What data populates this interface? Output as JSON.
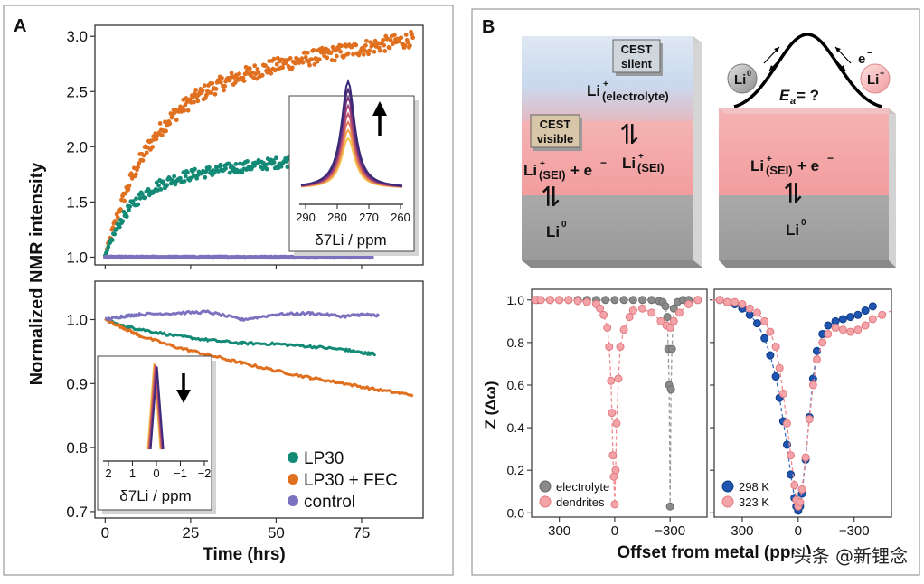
{
  "panels": {
    "a": "A",
    "b": "B"
  },
  "colors": {
    "lp30": "#128a76",
    "fec": "#e0701f",
    "control": "#7a72bf",
    "grey": "#8a8a8a",
    "pink": "#f4a4a8",
    "blue": "#1f55b0",
    "inset_gold": "#f2c14e",
    "inset_purple": "#3d2c7a"
  },
  "watermark": "头条 @新锂念",
  "chart_data": [
    {
      "id": "A-top",
      "type": "scatter",
      "panel": "A",
      "ylabel": "Normalized NMR intensity",
      "xlabel": "Time (hrs)",
      "xlim": [
        -3,
        93
      ],
      "ylim": [
        0.93,
        3.1
      ],
      "xticks": [
        0,
        25,
        50,
        75
      ],
      "yticks": [
        1.0,
        1.5,
        2.0,
        2.5,
        3.0
      ],
      "ytick_labels": [
        "1.0",
        "1.5",
        "2.0",
        "2.5",
        "3.0"
      ],
      "series": [
        {
          "name": "LP30 + FEC",
          "color_key": "fec",
          "model": {
            "kind": "saturating",
            "y0": 1.0,
            "A": 1.5,
            "tau": 13.0,
            "slope": 0.0053,
            "xmax": 90,
            "n": 320,
            "noise": 0.07
          }
        },
        {
          "name": "LP30",
          "color_key": "lp30",
          "model": {
            "kind": "saturating",
            "y0": 1.0,
            "A": 0.68,
            "tau": 7.5,
            "slope": 0.0035,
            "xmax": 78,
            "n": 260,
            "noise": 0.05
          }
        },
        {
          "name": "control",
          "color_key": "control",
          "model": {
            "kind": "flat",
            "y0": 1.0,
            "xmax": 78,
            "n": 260,
            "noise": 0.004
          }
        }
      ],
      "inset": {
        "xlabel": "δ7Li / ppm",
        "xticks": [
          290,
          280,
          270,
          260
        ],
        "xtick_labels": [
          "290",
          "280",
          "270",
          "260"
        ],
        "arrow": "up"
      }
    },
    {
      "id": "A-bottom",
      "type": "line",
      "panel": "A",
      "xlabel": "Time (hrs)",
      "xlim": [
        -3,
        93
      ],
      "ylim": [
        0.69,
        1.06
      ],
      "xticks": [
        0,
        25,
        50,
        75
      ],
      "xtick_labels": [
        "0",
        "25",
        "50",
        "75"
      ],
      "yticks": [
        0.7,
        0.8,
        0.9,
        1.0
      ],
      "ytick_labels": [
        "0.7",
        "0.8",
        "0.9",
        "1.0"
      ],
      "series": [
        {
          "name": "LP30",
          "color_key": "lp30",
          "x": [
            0,
            5,
            10,
            20,
            30,
            40,
            50,
            60,
            70,
            75,
            79
          ],
          "y": [
            1.0,
            0.99,
            0.985,
            0.975,
            0.968,
            0.963,
            0.962,
            0.958,
            0.953,
            0.948,
            0.946
          ]
        },
        {
          "name": "LP30 + FEC",
          "color_key": "fec",
          "x": [
            0,
            5,
            10,
            20,
            30,
            40,
            50,
            60,
            70,
            80,
            90
          ],
          "y": [
            1.0,
            0.988,
            0.975,
            0.958,
            0.945,
            0.932,
            0.92,
            0.909,
            0.9,
            0.89,
            0.882
          ]
        },
        {
          "name": "control",
          "color_key": "control",
          "x": [
            0,
            5,
            10,
            20,
            30,
            40,
            50,
            60,
            70,
            75,
            80
          ],
          "y": [
            1.0,
            1.005,
            1.008,
            1.01,
            1.012,
            1.0,
            1.008,
            1.01,
            1.005,
            1.008,
            1.006
          ]
        }
      ],
      "legend": [
        "LP30",
        "LP30 + FEC",
        "control"
      ],
      "inset": {
        "xlabel": "δ7Li / ppm",
        "xticks": [
          2,
          1,
          0,
          -1,
          -2
        ],
        "xtick_labels": [
          "2",
          "1",
          "0",
          "−1",
          "−2"
        ],
        "arrow": "down"
      }
    },
    {
      "id": "B-left",
      "type": "line",
      "panel": "B",
      "ylabel": "Z (Δω)",
      "xlabel": "Offset from metal (ppm)",
      "xlim": [
        450,
        -500
      ],
      "ylim": [
        -0.02,
        1.05
      ],
      "xticks": [
        300,
        0,
        -300
      ],
      "xtick_labels": [
        "300",
        "0",
        "−300"
      ],
      "yticks": [
        0.0,
        0.2,
        0.4,
        0.6,
        0.8,
        1.0
      ],
      "ytick_labels": [
        "0.0",
        "0.2",
        "0.4",
        "0.6",
        "0.8",
        "1.0"
      ],
      "series": [
        {
          "name": "electrolyte",
          "color_key": "grey",
          "x": [
            420,
            350,
            300,
            250,
            200,
            150,
            100,
            50,
            0,
            -50,
            -100,
            -150,
            -200,
            -240,
            -260,
            -275,
            -285,
            -290,
            -295,
            -300,
            -305,
            -310,
            -320,
            -340,
            -370,
            -400,
            -450
          ],
          "y": [
            1.0,
            1.0,
            1.0,
            1.0,
            1.0,
            1.0,
            1.0,
            1.0,
            1.0,
            1.0,
            1.0,
            1.0,
            1.0,
            0.995,
            0.99,
            0.97,
            0.92,
            0.77,
            0.6,
            0.03,
            0.58,
            0.77,
            0.96,
            0.99,
            1.0,
            1.0,
            1.0
          ]
        },
        {
          "name": "dendrites",
          "color_key": "pink",
          "x": [
            430,
            400,
            350,
            300,
            250,
            200,
            150,
            100,
            80,
            60,
            40,
            30,
            20,
            15,
            10,
            5,
            0,
            -5,
            -10,
            -20,
            -30,
            -50,
            -80,
            -100,
            -150,
            -200,
            -250,
            -280,
            -300,
            -320,
            -350,
            -400,
            -450
          ],
          "y": [
            1.0,
            1.0,
            1.0,
            1.0,
            1.0,
            0.995,
            0.99,
            0.98,
            0.96,
            0.93,
            0.87,
            0.78,
            0.62,
            0.47,
            0.27,
            0.17,
            0.04,
            0.2,
            0.42,
            0.63,
            0.78,
            0.86,
            0.92,
            0.95,
            0.96,
            0.94,
            0.9,
            0.88,
            0.87,
            0.9,
            0.94,
            0.98,
            1.0
          ]
        }
      ],
      "legend": [
        "electrolyte",
        "dendrites"
      ]
    },
    {
      "id": "B-right",
      "type": "line",
      "panel": "B",
      "xlim": [
        450,
        -500
      ],
      "ylim": [
        -0.02,
        1.05
      ],
      "xticks": [
        300,
        0,
        -300
      ],
      "xtick_labels": [
        "300",
        "0",
        "−300"
      ],
      "yticks": [
        0.0,
        0.2,
        0.4,
        0.6,
        0.8,
        1.0
      ],
      "series": [
        {
          "name": "298 K",
          "color_key": "blue",
          "x": [
            450,
            420,
            380,
            340,
            300,
            260,
            220,
            180,
            150,
            120,
            100,
            80,
            60,
            40,
            20,
            10,
            0,
            -10,
            -20,
            -40,
            -60,
            -80,
            -100,
            -130,
            -160,
            -200,
            -240,
            -280,
            -320,
            -360,
            -400
          ],
          "y": [
            1.0,
            1.0,
            0.99,
            0.98,
            0.96,
            0.93,
            0.89,
            0.82,
            0.74,
            0.64,
            0.54,
            0.43,
            0.32,
            0.18,
            0.07,
            0.03,
            0.01,
            0.03,
            0.09,
            0.25,
            0.45,
            0.63,
            0.76,
            0.84,
            0.88,
            0.9,
            0.91,
            0.92,
            0.93,
            0.95,
            0.97
          ]
        },
        {
          "name": "323 K",
          "color_key": "pink",
          "x": [
            460,
            420,
            380,
            340,
            300,
            260,
            220,
            180,
            150,
            120,
            100,
            80,
            60,
            40,
            20,
            10,
            0,
            -10,
            -20,
            -40,
            -60,
            -80,
            -100,
            -130,
            -160,
            -200,
            -240,
            -280,
            -320,
            -360,
            -400,
            -450,
            -500
          ],
          "y": [
            1.0,
            1.0,
            0.99,
            0.99,
            0.98,
            0.96,
            0.94,
            0.9,
            0.85,
            0.78,
            0.68,
            0.56,
            0.42,
            0.27,
            0.13,
            0.06,
            0.03,
            0.05,
            0.11,
            0.26,
            0.44,
            0.6,
            0.72,
            0.8,
            0.84,
            0.87,
            0.86,
            0.85,
            0.86,
            0.88,
            0.91,
            0.93,
            0.95
          ]
        }
      ],
      "legend": [
        "298 K",
        "323 K"
      ]
    }
  ],
  "schematic": {
    "cest_silent": [
      "CEST",
      "silent"
    ],
    "cest_visible": [
      "CEST",
      "visible"
    ],
    "li_plus_base": "Li",
    "electrolyte_sub": "(electrolyte)",
    "sei_sub": "(SEI)",
    "e_minus": "+ e",
    "li0": "Li",
    "ea": "E",
    "ea_sub": "a",
    "ea_rest": " = ?",
    "bubble_li0": "Li",
    "bubble_liplus": "Li",
    "e_label": "e",
    "eq": "⇌",
    "sup_plus": "+",
    "sup_minus": "−",
    "sup_zero": "0"
  }
}
